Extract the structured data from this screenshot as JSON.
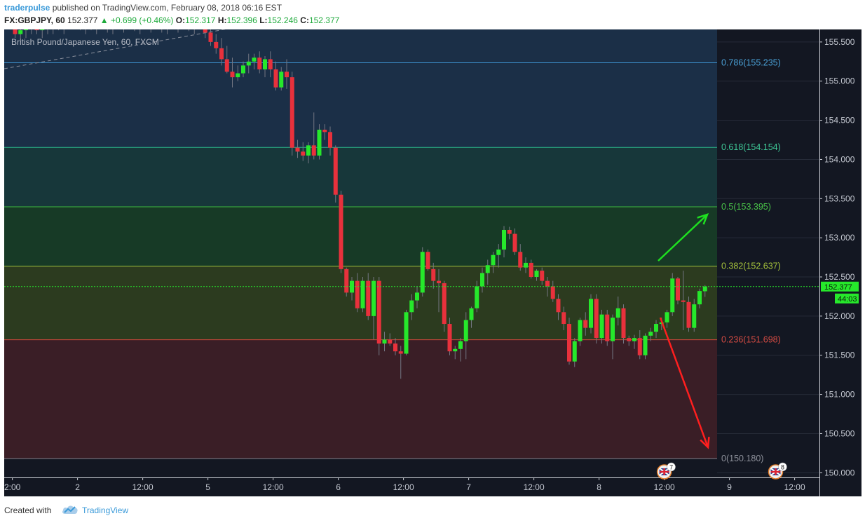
{
  "header": {
    "author": "traderpulse",
    "published_text": "published on TradingView.com, February 08, 2018 06:16 EST",
    "symbol": "FX:GBPJPY, 60",
    "last": "152.377",
    "change": "▲ +0.699 (+0.46%)",
    "o_label": "O:",
    "o_value": "152.317",
    "h_label": "H:",
    "h_value": "152.396",
    "l_label": "L:",
    "l_value": "152.246",
    "c_label": "C:",
    "c_value": "152.377"
  },
  "legend": "British Pound/Japanese Yen, 60, FXCM",
  "footer": {
    "created_with": "Created with",
    "brand": "TradingView"
  },
  "colors": {
    "background": "#131722",
    "bull": "#26e82b",
    "bear": "#e8313c",
    "grid": "#262b38",
    "axis_text": "#c5c9d2",
    "arrow_up": "#1ee020",
    "arrow_down": "#ff1f1f"
  },
  "price_axis": {
    "ticks": [
      155.5,
      155.0,
      154.5,
      154.0,
      153.5,
      153.0,
      152.5,
      152.0,
      151.5,
      151.0,
      150.5,
      150.0
    ],
    "tick_labels": [
      "155.500",
      "155.000",
      "154.500",
      "154.000",
      "153.500",
      "153.000",
      "152.500",
      "152.000",
      "151.500",
      "151.000",
      "150.500",
      "150.000"
    ],
    "current_label": "152.377",
    "countdown_label": "44:03"
  },
  "time_axis": {
    "ticks": [
      {
        "label": "2:00",
        "bar": -0.5
      },
      {
        "label": "2",
        "bar": 11.5
      },
      {
        "label": "12:00",
        "bar": 23.5
      },
      {
        "label": "5",
        "bar": 35.5
      },
      {
        "label": "12:00",
        "bar": 47.5
      },
      {
        "label": "6",
        "bar": 59.5
      },
      {
        "label": "12:00",
        "bar": 71.5
      },
      {
        "label": "7",
        "bar": 83.5
      },
      {
        "label": "12:00",
        "bar": 95.5
      },
      {
        "label": "8",
        "bar": 107.5
      },
      {
        "label": "12:00",
        "bar": 119.5
      },
      {
        "label": "9",
        "bar": 131.5
      },
      {
        "label": "12:00",
        "bar": 143.5
      }
    ]
  },
  "event_badges": [
    {
      "name": "uk-flag-icon",
      "count": "7",
      "bar": 119.5
    },
    {
      "name": "uk-flag-icon",
      "count": "8",
      "bar": 140
    }
  ],
  "chart_data": {
    "type": "candlestick",
    "title": "British Pound/Japanese Yen, 60, FXCM",
    "symbol": "FX:GBPJPY",
    "interval": "60",
    "ylim": [
      149.94,
      155.66
    ],
    "fib_levels": [
      {
        "ratio": "0.786",
        "price": 155.235,
        "label": "0.786(155.235)",
        "line": "#3c8dc8",
        "fill": "#1b2f47",
        "text": "#4aa0d6"
      },
      {
        "ratio": "0.618",
        "price": 154.154,
        "label": "0.618(154.154)",
        "line": "#2cb58a",
        "fill": "#17373a",
        "text": "#3ec796"
      },
      {
        "ratio": "0.5",
        "price": 153.395,
        "label": "0.5(153.395)",
        "line": "#3cbb3c",
        "fill": "#173a26",
        "text": "#49c449"
      },
      {
        "ratio": "0.382",
        "price": 152.637,
        "label": "0.382(152.637)",
        "line": "#9fc03a",
        "fill": "#2c3b1f",
        "text": "#a7c43c"
      },
      {
        "ratio": "0.236",
        "price": 151.698,
        "label": "0.236(151.698)",
        "line": "#d2473f",
        "fill": "#3a1e26",
        "text": "#d44b43"
      },
      {
        "ratio": "0",
        "price": 150.18,
        "label": "0(150.180)",
        "line": "#7c7f8a",
        "fill": null,
        "text": "#8e919b"
      }
    ],
    "candles": [
      [
        155.95,
        156.05,
        155.55,
        155.6
      ],
      [
        155.6,
        155.75,
        155.5,
        155.65
      ],
      [
        155.65,
        155.8,
        155.55,
        155.7
      ],
      [
        155.7,
        155.85,
        155.6,
        155.75
      ],
      [
        155.75,
        155.9,
        155.6,
        155.65
      ],
      [
        155.65,
        155.8,
        155.55,
        155.75
      ],
      [
        155.75,
        155.85,
        155.6,
        155.7
      ],
      [
        155.7,
        155.85,
        155.6,
        155.8
      ],
      [
        155.8,
        155.9,
        155.65,
        155.7
      ],
      [
        155.7,
        155.85,
        155.6,
        155.8
      ],
      [
        155.8,
        155.9,
        155.7,
        155.85
      ],
      [
        155.85,
        156.0,
        155.75,
        155.8
      ],
      [
        155.8,
        155.9,
        155.65,
        155.7
      ],
      [
        155.7,
        155.85,
        155.6,
        155.78
      ],
      [
        155.78,
        155.88,
        155.65,
        155.72
      ],
      [
        155.72,
        155.85,
        155.6,
        155.8
      ],
      [
        155.8,
        155.92,
        155.7,
        155.75
      ],
      [
        155.75,
        155.85,
        155.62,
        155.7
      ],
      [
        155.7,
        155.82,
        155.6,
        155.76
      ],
      [
        155.76,
        155.86,
        155.66,
        155.72
      ],
      [
        155.72,
        155.84,
        155.62,
        155.78
      ],
      [
        155.78,
        155.9,
        155.68,
        155.74
      ],
      [
        155.74,
        155.86,
        155.64,
        155.7
      ],
      [
        155.7,
        155.82,
        155.6,
        155.76
      ],
      [
        155.76,
        155.88,
        155.66,
        155.72
      ],
      [
        155.72,
        155.84,
        155.62,
        155.78
      ],
      [
        155.78,
        155.88,
        155.68,
        155.74
      ],
      [
        155.74,
        155.86,
        155.62,
        155.7
      ],
      [
        155.7,
        155.82,
        155.6,
        155.76
      ],
      [
        155.76,
        155.86,
        155.66,
        155.72
      ],
      [
        155.72,
        155.84,
        155.62,
        155.78
      ],
      [
        155.78,
        155.9,
        155.68,
        155.74
      ],
      [
        155.74,
        155.86,
        155.64,
        155.7
      ],
      [
        155.7,
        155.82,
        155.6,
        155.76
      ],
      [
        155.76,
        155.86,
        155.66,
        155.72
      ],
      [
        155.72,
        155.8,
        155.55,
        155.62
      ],
      [
        155.62,
        155.72,
        155.45,
        155.5
      ],
      [
        155.5,
        155.6,
        155.35,
        155.42
      ],
      [
        155.42,
        155.55,
        155.2,
        155.28
      ],
      [
        155.28,
        155.45,
        155.1,
        155.12
      ],
      [
        155.12,
        155.3,
        154.92,
        155.05
      ],
      [
        155.05,
        155.2,
        155.0,
        155.1
      ],
      [
        155.1,
        155.25,
        155.05,
        155.2
      ],
      [
        155.2,
        155.35,
        155.1,
        155.25
      ],
      [
        155.25,
        155.35,
        155.15,
        155.3
      ],
      [
        155.3,
        155.38,
        155.1,
        155.15
      ],
      [
        155.15,
        155.32,
        155.05,
        155.28
      ],
      [
        155.28,
        155.38,
        155.05,
        155.15
      ],
      [
        155.15,
        155.25,
        154.88,
        154.92
      ],
      [
        154.92,
        155.18,
        154.88,
        155.12
      ],
      [
        155.12,
        155.28,
        154.9,
        155.05
      ],
      [
        155.05,
        155.12,
        154.05,
        154.15
      ],
      [
        154.15,
        154.25,
        154.02,
        154.1
      ],
      [
        154.1,
        154.22,
        153.98,
        154.05
      ],
      [
        154.05,
        154.22,
        153.95,
        154.18
      ],
      [
        154.18,
        154.6,
        154.0,
        154.05
      ],
      [
        154.05,
        154.45,
        154.0,
        154.38
      ],
      [
        154.38,
        154.45,
        154.25,
        154.35
      ],
      [
        154.35,
        154.42,
        154.05,
        154.15
      ],
      [
        154.15,
        154.18,
        153.45,
        153.55
      ],
      [
        153.55,
        153.6,
        152.55,
        152.6
      ],
      [
        152.6,
        152.62,
        152.25,
        152.3
      ],
      [
        152.3,
        152.5,
        152.2,
        152.45
      ],
      [
        152.45,
        152.55,
        152.05,
        152.1
      ],
      [
        152.1,
        152.5,
        152.05,
        152.45
      ],
      [
        152.45,
        152.55,
        151.95,
        152.0
      ],
      [
        152.0,
        152.5,
        151.7,
        152.45
      ],
      [
        152.45,
        152.5,
        151.5,
        151.65
      ],
      [
        151.65,
        151.8,
        151.55,
        151.7
      ],
      [
        151.7,
        151.78,
        151.62,
        151.65
      ],
      [
        151.65,
        151.72,
        151.5,
        151.55
      ],
      [
        151.55,
        151.62,
        151.2,
        151.52
      ],
      [
        151.52,
        152.08,
        151.5,
        152.05
      ],
      [
        152.05,
        152.28,
        151.95,
        152.2
      ],
      [
        152.2,
        152.38,
        152.1,
        152.3
      ],
      [
        152.3,
        152.88,
        152.25,
        152.82
      ],
      [
        152.82,
        152.85,
        152.58,
        152.6
      ],
      [
        152.6,
        152.68,
        152.35,
        152.45
      ],
      [
        152.45,
        152.6,
        152.05,
        152.42
      ],
      [
        152.42,
        152.45,
        151.8,
        151.9
      ],
      [
        151.9,
        151.98,
        151.5,
        151.55
      ],
      [
        151.55,
        151.62,
        151.45,
        151.58
      ],
      [
        151.58,
        151.72,
        151.42,
        151.68
      ],
      [
        151.68,
        152.05,
        151.45,
        151.95
      ],
      [
        151.95,
        152.12,
        151.85,
        152.1
      ],
      [
        152.1,
        152.45,
        152.05,
        152.38
      ],
      [
        152.38,
        152.62,
        152.3,
        152.55
      ],
      [
        152.55,
        152.72,
        152.4,
        152.65
      ],
      [
        152.65,
        152.82,
        152.55,
        152.78
      ],
      [
        152.78,
        152.92,
        152.62,
        152.85
      ],
      [
        152.85,
        153.15,
        152.75,
        153.1
      ],
      [
        153.1,
        153.14,
        152.98,
        153.05
      ],
      [
        153.05,
        153.12,
        152.78,
        152.82
      ],
      [
        152.82,
        152.92,
        152.58,
        152.62
      ],
      [
        152.62,
        152.75,
        152.55,
        152.68
      ],
      [
        152.68,
        152.72,
        152.48,
        152.5
      ],
      [
        152.5,
        152.6,
        152.45,
        152.58
      ],
      [
        152.58,
        152.62,
        152.4,
        152.45
      ],
      [
        152.45,
        152.5,
        152.25,
        152.38
      ],
      [
        152.38,
        152.45,
        152.18,
        152.22
      ],
      [
        152.22,
        152.28,
        151.95,
        152.05
      ],
      [
        152.05,
        152.12,
        151.82,
        151.9
      ],
      [
        151.9,
        151.98,
        151.38,
        151.42
      ],
      [
        151.42,
        151.72,
        151.35,
        151.68
      ],
      [
        151.68,
        151.98,
        151.62,
        151.95
      ],
      [
        151.95,
        152.05,
        151.75,
        151.85
      ],
      [
        151.85,
        152.28,
        151.78,
        152.22
      ],
      [
        152.22,
        152.28,
        151.65,
        151.72
      ],
      [
        151.72,
        152.08,
        151.65,
        152.02
      ],
      [
        152.02,
        152.08,
        151.62,
        151.68
      ],
      [
        151.68,
        152.02,
        151.45,
        151.98
      ],
      [
        151.98,
        152.25,
        151.88,
        152.1
      ],
      [
        152.1,
        152.15,
        151.65,
        151.72
      ],
      [
        151.72,
        151.75,
        151.62,
        151.68
      ],
      [
        151.68,
        151.76,
        151.58,
        151.72
      ],
      [
        151.72,
        151.82,
        151.45,
        151.5
      ],
      [
        151.5,
        151.78,
        151.45,
        151.75
      ],
      [
        151.75,
        151.85,
        151.68,
        151.8
      ],
      [
        151.8,
        151.95,
        151.72,
        151.9
      ],
      [
        151.9,
        151.98,
        151.82,
        151.92
      ],
      [
        151.92,
        152.08,
        151.85,
        152.05
      ],
      [
        152.05,
        152.55,
        152.0,
        152.48
      ],
      [
        152.48,
        152.5,
        152.15,
        152.2
      ],
      [
        152.2,
        152.58,
        151.82,
        152.18
      ],
      [
        152.18,
        152.25,
        151.8,
        151.85
      ],
      [
        151.85,
        152.22,
        151.8,
        152.15
      ],
      [
        152.15,
        152.35,
        152.1,
        152.32
      ],
      [
        152.317,
        152.396,
        152.246,
        152.377
      ]
    ],
    "annotations": [
      {
        "type": "arrow",
        "direction": "up",
        "color": "#1ee020"
      },
      {
        "type": "arrow",
        "direction": "down",
        "color": "#ff1f1f"
      }
    ]
  }
}
